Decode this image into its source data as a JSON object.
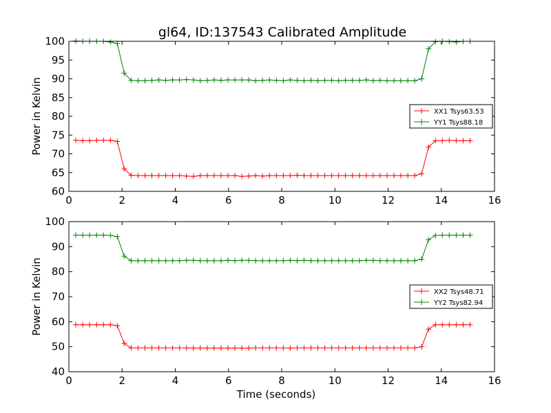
{
  "title": "gl64, ID:137543 Calibrated Amplitude",
  "colors": {
    "red": "#ff0000",
    "green": "#008000"
  },
  "chart_data": [
    {
      "type": "line",
      "xlabel": "",
      "ylabel": "Power in Kelvin",
      "xlim": [
        0,
        16
      ],
      "ylim": [
        60,
        100
      ],
      "xticks": [
        "0",
        "2",
        "4",
        "6",
        "8",
        "10",
        "12",
        "14",
        "16"
      ],
      "yticks": [
        "60",
        "65",
        "70",
        "75",
        "80",
        "85",
        "90",
        "95",
        "100"
      ],
      "grid": false,
      "legend_position": "center-right",
      "x": [
        0.26,
        0.52,
        0.78,
        1.04,
        1.3,
        1.56,
        1.82,
        2.08,
        2.34,
        2.6,
        2.86,
        3.12,
        3.38,
        3.64,
        3.9,
        4.16,
        4.42,
        4.68,
        4.94,
        5.2,
        5.46,
        5.72,
        5.98,
        6.24,
        6.5,
        6.76,
        7.02,
        7.28,
        7.54,
        7.8,
        8.06,
        8.32,
        8.58,
        8.84,
        9.1,
        9.36,
        9.62,
        9.88,
        10.14,
        10.4,
        10.66,
        10.92,
        11.18,
        11.44,
        11.7,
        11.96,
        12.22,
        12.48,
        12.74,
        13.0,
        13.26,
        13.52,
        13.78,
        14.04,
        14.3,
        14.56,
        14.82,
        15.08
      ],
      "series": [
        {
          "name": "XX1 Tsys63.53",
          "color": "#ff0000",
          "values": [
            73.6,
            73.5,
            73.5,
            73.6,
            73.6,
            73.6,
            73.3,
            66.0,
            64.3,
            64.2,
            64.2,
            64.2,
            64.2,
            64.2,
            64.2,
            64.2,
            64.1,
            64.0,
            64.2,
            64.2,
            64.2,
            64.2,
            64.2,
            64.2,
            64.0,
            64.1,
            64.2,
            64.1,
            64.2,
            64.2,
            64.2,
            64.2,
            64.3,
            64.2,
            64.2,
            64.2,
            64.2,
            64.2,
            64.2,
            64.2,
            64.2,
            64.2,
            64.2,
            64.2,
            64.2,
            64.2,
            64.2,
            64.2,
            64.2,
            64.2,
            64.7,
            71.8,
            73.5,
            73.5,
            73.6,
            73.5,
            73.5,
            73.5
          ]
        },
        {
          "name": "YY1 Tsys88.18",
          "color": "#008000",
          "values": [
            100.1,
            100.0,
            100.0,
            100.0,
            100.0,
            99.8,
            99.4,
            91.5,
            89.6,
            89.5,
            89.5,
            89.6,
            89.7,
            89.6,
            89.7,
            89.7,
            89.8,
            89.7,
            89.5,
            89.6,
            89.7,
            89.6,
            89.7,
            89.7,
            89.7,
            89.7,
            89.5,
            89.6,
            89.7,
            89.6,
            89.5,
            89.7,
            89.6,
            89.5,
            89.6,
            89.5,
            89.6,
            89.6,
            89.5,
            89.6,
            89.6,
            89.6,
            89.7,
            89.5,
            89.6,
            89.5,
            89.5,
            89.5,
            89.5,
            89.5,
            90.0,
            98.0,
            99.9,
            100.0,
            99.9,
            99.8,
            100.0,
            100.0
          ]
        }
      ]
    },
    {
      "type": "line",
      "xlabel": "Time (seconds)",
      "ylabel": "Power in Kelvin",
      "xlim": [
        0,
        16
      ],
      "ylim": [
        40,
        100
      ],
      "xticks": [
        "0",
        "2",
        "4",
        "6",
        "8",
        "10",
        "12",
        "14",
        "16"
      ],
      "yticks": [
        "40",
        "50",
        "60",
        "70",
        "80",
        "90",
        "100"
      ],
      "grid": false,
      "legend_position": "center-right",
      "x": [
        0.26,
        0.52,
        0.78,
        1.04,
        1.3,
        1.56,
        1.82,
        2.08,
        2.34,
        2.6,
        2.86,
        3.12,
        3.38,
        3.64,
        3.9,
        4.16,
        4.42,
        4.68,
        4.94,
        5.2,
        5.46,
        5.72,
        5.98,
        6.24,
        6.5,
        6.76,
        7.02,
        7.28,
        7.54,
        7.8,
        8.06,
        8.32,
        8.58,
        8.84,
        9.1,
        9.36,
        9.62,
        9.88,
        10.14,
        10.4,
        10.66,
        10.92,
        11.18,
        11.44,
        11.7,
        11.96,
        12.22,
        12.48,
        12.74,
        13.0,
        13.26,
        13.52,
        13.78,
        14.04,
        14.3,
        14.56,
        14.82,
        15.08
      ],
      "series": [
        {
          "name": "XX2 Tsys48.71",
          "color": "#ff0000",
          "values": [
            58.8,
            58.8,
            58.8,
            58.8,
            58.8,
            58.8,
            58.4,
            51.3,
            49.5,
            49.5,
            49.5,
            49.5,
            49.5,
            49.5,
            49.5,
            49.5,
            49.5,
            49.4,
            49.5,
            49.4,
            49.4,
            49.4,
            49.4,
            49.4,
            49.4,
            49.4,
            49.5,
            49.5,
            49.5,
            49.5,
            49.5,
            49.4,
            49.5,
            49.5,
            49.5,
            49.5,
            49.5,
            49.5,
            49.5,
            49.5,
            49.5,
            49.5,
            49.5,
            49.5,
            49.5,
            49.5,
            49.5,
            49.5,
            49.5,
            49.5,
            50.0,
            57.0,
            58.8,
            58.8,
            58.8,
            58.8,
            58.8,
            58.8
          ]
        },
        {
          "name": "YY2 Tsys82.94",
          "color": "#008000",
          "values": [
            94.6,
            94.6,
            94.6,
            94.6,
            94.6,
            94.5,
            94.0,
            86.2,
            84.4,
            84.4,
            84.4,
            84.4,
            84.4,
            84.4,
            84.4,
            84.4,
            84.5,
            84.5,
            84.4,
            84.4,
            84.4,
            84.4,
            84.5,
            84.4,
            84.5,
            84.5,
            84.4,
            84.4,
            84.4,
            84.4,
            84.4,
            84.5,
            84.4,
            84.5,
            84.4,
            84.4,
            84.4,
            84.4,
            84.4,
            84.4,
            84.4,
            84.4,
            84.5,
            84.5,
            84.4,
            84.4,
            84.4,
            84.4,
            84.4,
            84.4,
            85.0,
            92.8,
            94.5,
            94.6,
            94.6,
            94.6,
            94.6,
            94.6
          ]
        }
      ]
    }
  ]
}
